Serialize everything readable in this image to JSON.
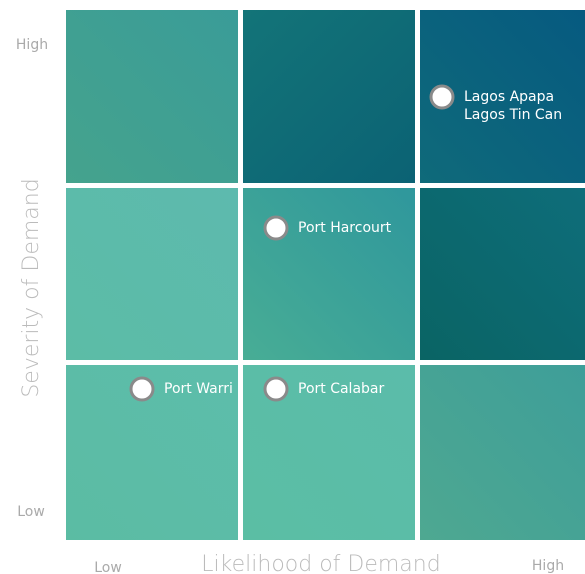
{
  "y_axis": {
    "title": "Severity of Demand",
    "high": "High",
    "low": "Low"
  },
  "x_axis": {
    "title": "Likelihood of Demand",
    "low": "Low",
    "high": "High"
  },
  "grid": [
    [
      [],
      [],
      [
        "Lagos Apapa",
        "Lagos Tin Can"
      ]
    ],
    [
      [],
      [
        "Port Harcourt"
      ],
      []
    ],
    [
      [
        "Port Warri"
      ],
      [
        "Port Calabar"
      ],
      []
    ]
  ]
}
